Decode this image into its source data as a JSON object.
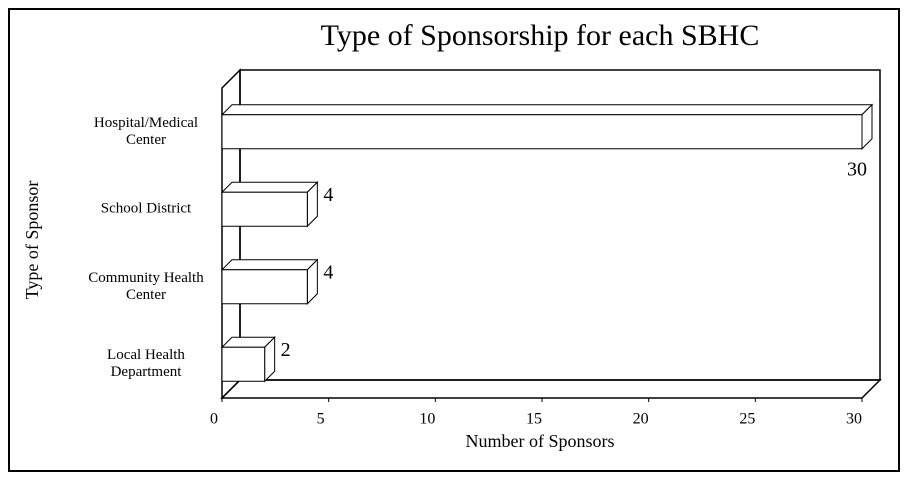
{
  "chart_data": {
    "type": "bar3d_horizontal",
    "title": "Type of Sponsorship for each SBHC",
    "x_label": "Number of Sponsors",
    "y_label": "Type of Sponsor",
    "categories": [
      "Hospital/Medical Center",
      "School District",
      "Community Health Center",
      "Local Health Department"
    ],
    "values": [
      30,
      4,
      4,
      2
    ],
    "color": "#ffffff",
    "xlim": [
      0,
      30
    ],
    "xticks": [
      0,
      5,
      10,
      15,
      20,
      25,
      30
    ]
  }
}
